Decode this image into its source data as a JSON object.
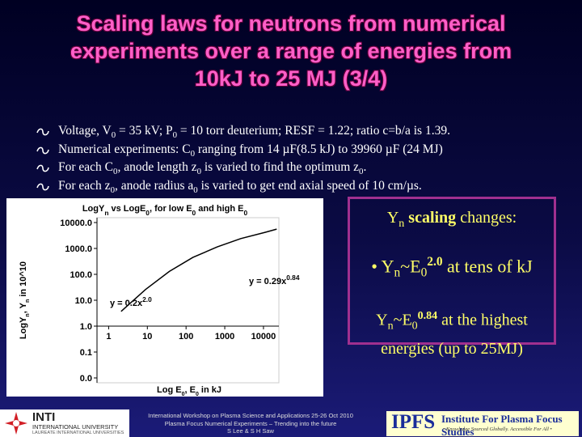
{
  "title_lines": [
    "Scaling laws for neutrons from numerical",
    "experiments over a range of energies from",
    "10kJ to 25 MJ (3/4)"
  ],
  "bullets": [
    [
      "Voltage, V",
      {
        "text": "0",
        "style": "sub"
      },
      " = 35 kV; P",
      {
        "text": "0",
        "style": "sub"
      },
      " = 10 torr deuterium; RESF = 1.22; ratio c=b/a is 1.39."
    ],
    [
      "Numerical experiments: C",
      {
        "text": "0",
        "style": "sub"
      },
      " ranging from 14 µF(8.5 kJ) to 39960 µF (24 MJ)"
    ],
    [
      "For each C",
      {
        "text": "0",
        "style": "sub"
      },
      ", anode length z",
      {
        "text": "0",
        "style": "sub"
      },
      " is varied to find the optimum z",
      {
        "text": "0",
        "style": "sub"
      },
      "."
    ],
    [
      "For each z",
      {
        "text": "0",
        "style": "sub"
      },
      ", anode radius a",
      {
        "text": "0",
        "style": "sub"
      },
      " is varied to get end axial speed of 10 cm/µs."
    ]
  ],
  "chart": {
    "type": "line",
    "title": [
      "LogY",
      {
        "text": "n",
        "style": "sub"
      },
      " vs LogE",
      {
        "text": "0",
        "style": "sub"
      },
      ", for low E",
      {
        "text": "0",
        "style": "sub"
      },
      " and high E",
      {
        "text": "0",
        "style": "sub"
      }
    ],
    "x_label": [
      "Log E",
      {
        "text": "0",
        "style": "sub"
      },
      ",  E",
      {
        "text": "0",
        "style": "sub"
      },
      " in kJ"
    ],
    "y_label": [
      "LogY",
      {
        "text": "n",
        "style": "sub"
      },
      ",  Y",
      {
        "text": "n",
        "style": "sub"
      },
      " in 10^10"
    ],
    "log_x": true,
    "log_y": true,
    "x": [
      2.1,
      9,
      37,
      150,
      640,
      2600,
      11000,
      22000
    ],
    "values": [
      3.7,
      26,
      130,
      450,
      1150,
      2400,
      4200,
      5600
    ],
    "color": "#000000",
    "xlim": [
      0.5,
      25000
    ],
    "ylim": [
      0.01,
      10000
    ],
    "x_axis_crosses_at": 1,
    "xticks": [
      1,
      10,
      100,
      1000,
      10000
    ],
    "yticks": [
      {
        "value": 10000,
        "label": "10000.0"
      },
      {
        "value": 1000,
        "label": "1000.0"
      },
      {
        "value": 100,
        "label": "100.0"
      },
      {
        "value": 10,
        "label": "10.0"
      },
      {
        "value": 1,
        "label": "1.0"
      },
      {
        "value": 0.1,
        "label": "0.1"
      },
      {
        "value": 0.01,
        "label": "0.0"
      }
    ],
    "annotations": [
      [
        "y = 0.29x",
        {
          "text": "0.84",
          "style": "sup"
        }
      ],
      [
        "y = 0.2x",
        {
          "text": "2.0",
          "style": "sup"
        }
      ]
    ]
  },
  "callout": {
    "heading": [
      "Y",
      {
        "text": "n",
        "style": "sub"
      },
      {
        "text": " scaling",
        "style": "bold"
      },
      " changes:"
    ],
    "items": [
      [
        "• Y",
        {
          "text": "n",
          "style": "sub"
        },
        "~E",
        {
          "text": "0",
          "style": "sub"
        },
        {
          "text": "2.0",
          "style": "sup"
        },
        " at tens of kJ"
      ],
      [
        "Y",
        {
          "text": "n",
          "style": "sub"
        },
        "~E",
        {
          "text": "0",
          "style": "sub"
        },
        {
          "text": "0.84",
          "style": "sup"
        },
        " at the highest energies (up to 25MJ)"
      ]
    ]
  },
  "footer": {
    "logo": {
      "name": "INTI",
      "line1": "INTERNATIONAL UNIVERSITY",
      "line2": "LAUREATE INTERNATIONAL UNIVERSITIES"
    },
    "workshop": [
      "International Workshop on Plasma Science and Applications 25-26 Oct 2010",
      "Plasma Focus Numerical Experiments – Trending into the future",
      "S Lee & S H Saw"
    ],
    "ipfs": {
      "acronym": "IPFS",
      "name": "Institute For Plasma Focus Studies",
      "motto": "• Knowledge Sourced Globally. Accessible For All •"
    }
  }
}
